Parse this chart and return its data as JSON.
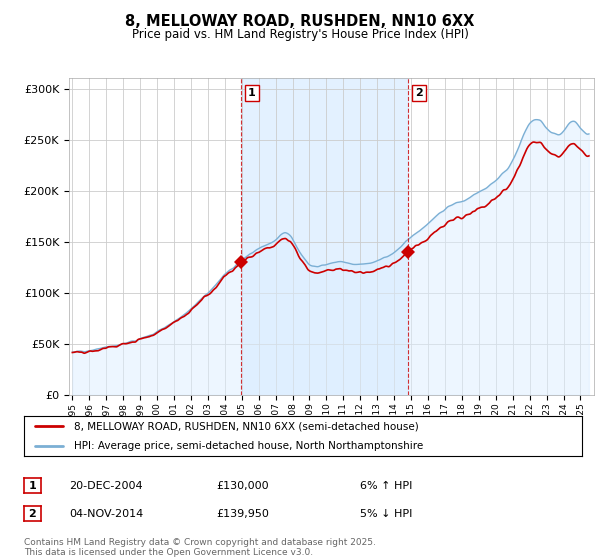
{
  "title": "8, MELLOWAY ROAD, RUSHDEN, NN10 6XX",
  "subtitle": "Price paid vs. HM Land Registry's House Price Index (HPI)",
  "background_color": "#ffffff",
  "plot_bg_color": "#ffffff",
  "grid_color": "#cccccc",
  "hpi_color": "#7bafd4",
  "price_color": "#cc0000",
  "hpi_fill_color": "#ddeeff",
  "span_color": "#ddeeff",
  "sale1_x": 2004.97,
  "sale1_y": 130000,
  "sale2_x": 2014.84,
  "sale2_y": 139950,
  "legend_entries": [
    "8, MELLOWAY ROAD, RUSHDEN, NN10 6XX (semi-detached house)",
    "HPI: Average price, semi-detached house, North Northamptonshire"
  ],
  "annotation1": {
    "label": "1",
    "date": "20-DEC-2004",
    "price": "£130,000",
    "change": "6% ↑ HPI"
  },
  "annotation2": {
    "label": "2",
    "date": "04-NOV-2014",
    "price": "£139,950",
    "change": "5% ↓ HPI"
  },
  "footer": "Contains HM Land Registry data © Crown copyright and database right 2025.\nThis data is licensed under the Open Government Licence v3.0.",
  "ylim": [
    0,
    310000
  ],
  "yticks": [
    0,
    50000,
    100000,
    150000,
    200000,
    250000,
    300000
  ],
  "ytick_labels": [
    "£0",
    "£50K",
    "£100K",
    "£150K",
    "£200K",
    "£250K",
    "£300K"
  ],
  "xmin": 1994.8,
  "xmax": 2025.8
}
